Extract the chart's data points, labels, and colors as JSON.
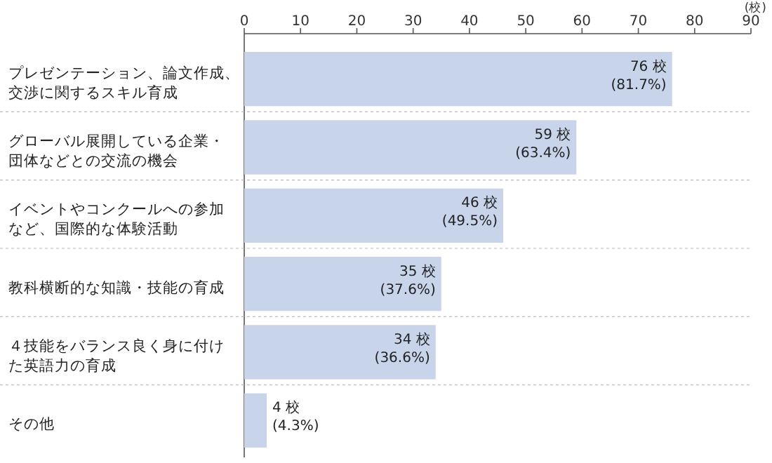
{
  "chart_data": {
    "type": "bar",
    "orientation": "horizontal",
    "xlabel": "(校)",
    "categories": [
      "プレゼンテーション、論文作成、交渉に関するスキル育成",
      "グローバル展開している企業・団体などとの交流の機会",
      "イベントやコンクールへの参加など、国際的な体験活動",
      "教科横断的な知識・技能の育成",
      "４技能をバランス良く身に付けた英語力の育成",
      "その他"
    ],
    "values": [
      76,
      59,
      46,
      35,
      34,
      4
    ],
    "value_labels": [
      "76 校 (81.7%)",
      "59 校 (63.4%)",
      "46 校 (49.5%)",
      "35 校 (37.6%)",
      "34 校 (36.6%)",
      "4 校 (4.3%)"
    ],
    "color": "#c8d4ea",
    "xlim": [
      0,
      90
    ],
    "xticks": [
      0,
      10,
      20,
      30,
      40,
      50,
      60,
      70,
      80,
      90
    ],
    "grid": false
  }
}
